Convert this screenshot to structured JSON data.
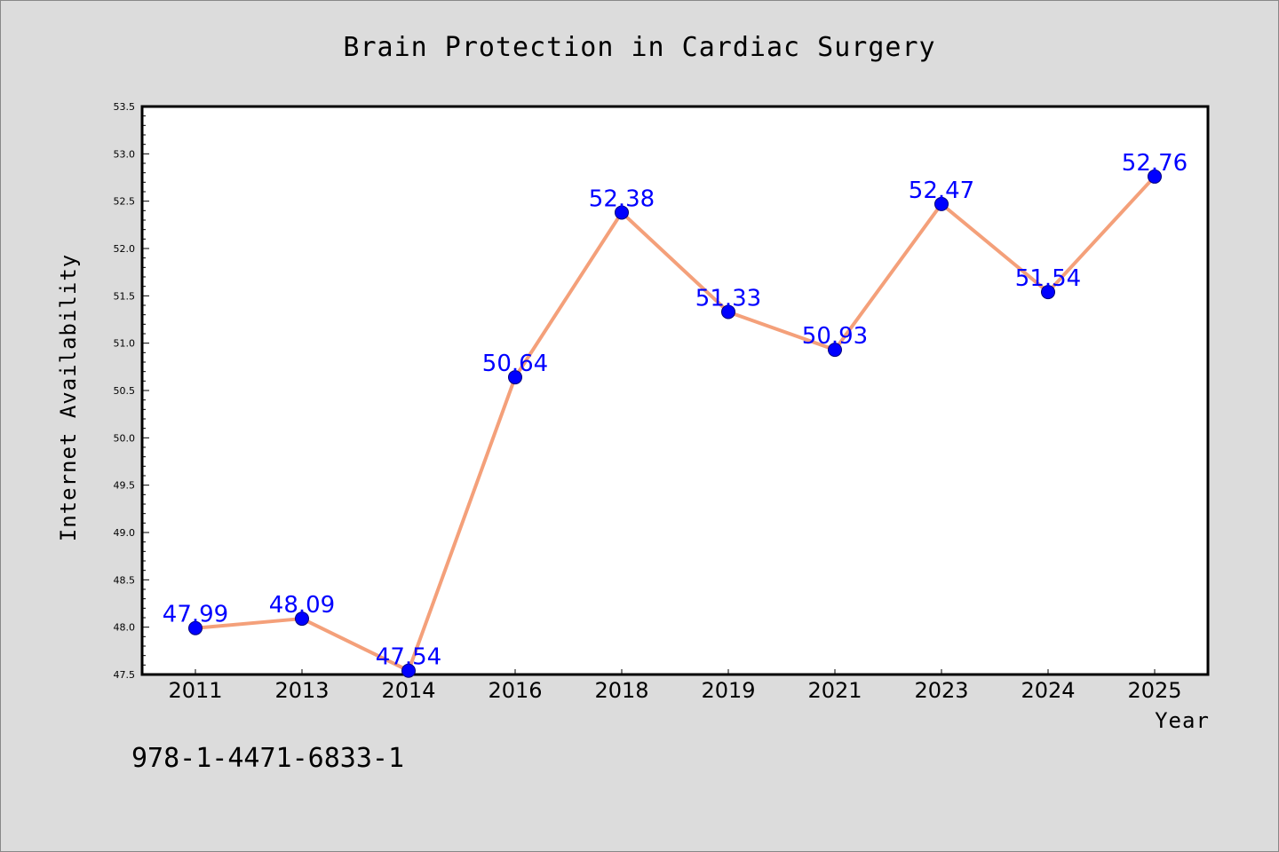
{
  "chart_data": {
    "type": "line",
    "title": "Brain Protection in Cardiac Surgery",
    "xlabel": "Year",
    "ylabel": "Internet Availability",
    "categories": [
      "2011",
      "2013",
      "2014",
      "2016",
      "2018",
      "2019",
      "2021",
      "2023",
      "2024",
      "2025"
    ],
    "series": [
      {
        "values": [
          47.99,
          48.09,
          47.54,
          50.64,
          52.38,
          51.33,
          50.93,
          52.47,
          51.54,
          52.76
        ],
        "labels": [
          "47.99",
          "48.09",
          "47.54",
          "50.64",
          "52.38",
          "51.33",
          "50.93",
          "52.47",
          "51.54",
          "52.76"
        ]
      }
    ],
    "ylim": [
      47.5,
      53.5
    ],
    "yticks": [
      "47.5",
      "48.0",
      "48.5",
      "49.0",
      "49.5",
      "50.0",
      "50.5",
      "51.0",
      "51.5",
      "52.0",
      "52.5",
      "53.0",
      "53.5"
    ],
    "grid": false,
    "colors": {
      "background": "#dcdcdc",
      "plot_background": "#ffffff",
      "line": "#f4a07a",
      "marker": "#0000ff",
      "data_label": "#0000ff"
    }
  },
  "footer": {
    "isbn": "978-1-4471-6833-1"
  }
}
